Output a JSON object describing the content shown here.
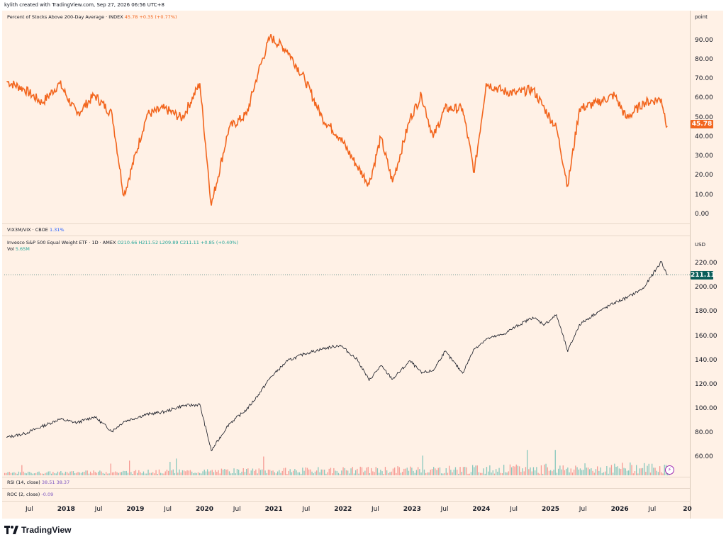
{
  "header": {
    "caption": "kylith created with TradingView.com, Sep 27, 2026 06:56 UTC+8"
  },
  "pane1": {
    "legend_title": "Percent of Stocks Above 200-Day Average · INDEX",
    "legend_values": "45.78 +0.35 (+0.77%)",
    "scale_unit": "point",
    "last_value": "45.78"
  },
  "pane_vix": {
    "legend_title": "VIX3M/VIX · CBOE",
    "legend_value": "1.31%"
  },
  "pane2": {
    "legend_title": "Invesco S&P 500 Equal Weight ETF · 1D · AMEX",
    "ohlc": "O210.66 H211.52 L209.89 C211.11 +0.85 (+0.40%)",
    "vol_label": "Vol",
    "vol_value": "5.65M",
    "scale_unit": "USD",
    "last_value": "211.11"
  },
  "pane_rsi": {
    "legend_title": "RSI (14, close)",
    "legend_values": "38.51 38.37"
  },
  "pane_roc": {
    "legend_title": "ROC (2, close)",
    "legend_value": "-0.09"
  },
  "footer": {
    "brand": "TradingView"
  },
  "colors": {
    "background": "#fff1e6",
    "breadth_line": "#f2651d",
    "price_line": "#131722",
    "volume_up": "#26a69a",
    "volume_down": "#ef5350",
    "last_price_tag": "#0b5e5a"
  },
  "chart_data": [
    {
      "type": "line",
      "series": [
        {
          "name": "Percent of Stocks Above 200-Day Average",
          "x": [
            "2017-04",
            "2017-07",
            "2017-10",
            "2018-01",
            "2018-04",
            "2018-07",
            "2018-10",
            "2018-12",
            "2019-04",
            "2019-07",
            "2019-10",
            "2020-01",
            "2020-03",
            "2020-06",
            "2020-09",
            "2020-11",
            "2021-01",
            "2021-04",
            "2021-07",
            "2021-10",
            "2022-01",
            "2022-04",
            "2022-06",
            "2022-08",
            "2022-10",
            "2023-01",
            "2023-03",
            "2023-05",
            "2023-07",
            "2023-10",
            "2023-12",
            "2024-02",
            "2024-05",
            "2024-07",
            "2024-10",
            "2024-12",
            "2025-02",
            "2025-04",
            "2025-06",
            "2025-09",
            "2025-12",
            "2026-02",
            "2026-05",
            "2026-08",
            "2026-09"
          ],
          "values": [
            69,
            65,
            58,
            68,
            52,
            62,
            52,
            10,
            52,
            55,
            50,
            68,
            5,
            45,
            52,
            74,
            92,
            85,
            70,
            50,
            40,
            25,
            16,
            40,
            17,
            50,
            62,
            40,
            55,
            55,
            22,
            68,
            64,
            63,
            65,
            55,
            45,
            15,
            55,
            58,
            62,
            50,
            58,
            60,
            45.78
          ]
        }
      ],
      "ylim": [
        0,
        95
      ],
      "y_ticks": [
        "0.00",
        "10.00",
        "20.00",
        "30.00",
        "40.00",
        "50.00",
        "60.00",
        "70.00",
        "80.00",
        "90.00"
      ]
    },
    {
      "type": "line",
      "series": [
        {
          "name": "Invesco S&P 500 Equal Weight ETF",
          "x": [
            "2017-04",
            "2017-07",
            "2017-10",
            "2018-01",
            "2018-04",
            "2018-07",
            "2018-10",
            "2018-12",
            "2019-04",
            "2019-07",
            "2019-10",
            "2020-01",
            "2020-03",
            "2020-06",
            "2020-09",
            "2020-11",
            "2021-01",
            "2021-04",
            "2021-07",
            "2021-10",
            "2022-01",
            "2022-04",
            "2022-06",
            "2022-08",
            "2022-10",
            "2023-01",
            "2023-03",
            "2023-05",
            "2023-07",
            "2023-10",
            "2023-12",
            "2024-02",
            "2024-05",
            "2024-07",
            "2024-10",
            "2024-12",
            "2025-02",
            "2025-04",
            "2025-06",
            "2025-09",
            "2025-12",
            "2026-02",
            "2026-05",
            "2026-08",
            "2026-09"
          ],
          "values": [
            77,
            80,
            86,
            92,
            89,
            94,
            82,
            90,
            96,
            98,
            103,
            104,
            66,
            88,
            100,
            112,
            126,
            140,
            146,
            150,
            153,
            141,
            124,
            136,
            125,
            140,
            130,
            132,
            148,
            130,
            150,
            158,
            162,
            168,
            176,
            170,
            178,
            148,
            170,
            180,
            188,
            192,
            200,
            222,
            211.11
          ]
        }
      ],
      "ylim": [
        48,
        230
      ],
      "y_ticks": [
        "60.00",
        "80.00",
        "100.00",
        "120.00",
        "140.00",
        "160.00",
        "180.00",
        "200.00",
        "220.00"
      ]
    }
  ],
  "x_axis": [
    "Jul",
    "2018",
    "Jul",
    "2019",
    "Jul",
    "2020",
    "Jul",
    "2021",
    "Jul",
    "2022",
    "Jul",
    "2023",
    "Jul",
    "2024",
    "Jul",
    "2025",
    "Jul",
    "2026",
    "Jul",
    "20"
  ],
  "x_axis_bold": [
    false,
    true,
    false,
    true,
    false,
    true,
    false,
    true,
    false,
    true,
    false,
    true,
    false,
    true,
    false,
    true,
    false,
    true,
    false,
    true
  ]
}
